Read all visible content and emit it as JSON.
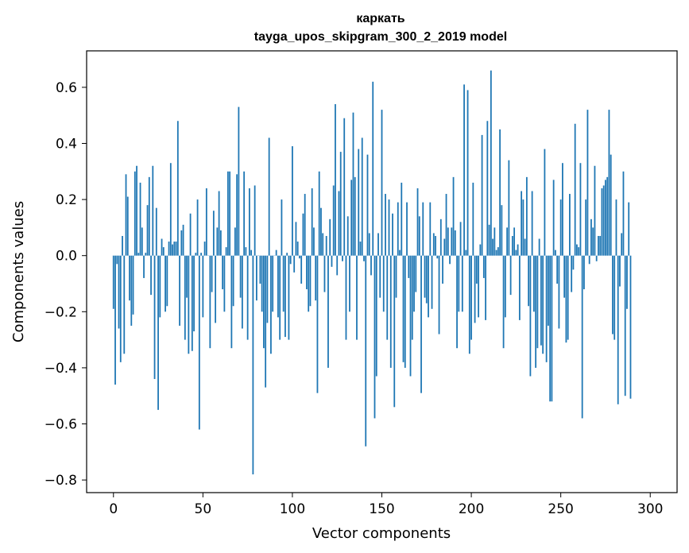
{
  "chart_data": {
    "type": "bar",
    "title": "каркать",
    "subtitle": "tayga_upos_skipgram_300_2_2019 model",
    "xlabel": "Vector components",
    "ylabel": "Components values",
    "xlim": [
      -15,
      315
    ],
    "ylim": [
      -0.845,
      0.73
    ],
    "x_ticks": [
      0,
      50,
      100,
      150,
      200,
      250,
      300
    ],
    "x_tick_labels": [
      "0",
      "50",
      "100",
      "150",
      "200",
      "250",
      "300"
    ],
    "y_ticks": [
      -0.8,
      -0.6,
      -0.4,
      -0.2,
      0.0,
      0.2,
      0.4,
      0.6
    ],
    "y_tick_labels": [
      "−0.8",
      "−0.6",
      "−0.4",
      "−0.2",
      "0.0",
      "0.2",
      "0.4",
      "0.6"
    ],
    "series_color": "#1f77b4",
    "grid": false,
    "legend": false,
    "values": [
      -0.19,
      -0.46,
      -0.03,
      -0.26,
      -0.38,
      0.07,
      -0.35,
      0.29,
      0.21,
      -0.16,
      -0.25,
      -0.21,
      0.3,
      0.32,
      0.01,
      0.26,
      0.1,
      -0.08,
      0.01,
      0.18,
      0.28,
      -0.14,
      0.32,
      -0.44,
      0.17,
      -0.55,
      -0.22,
      0.06,
      0.03,
      -0.2,
      -0.18,
      0.05,
      0.33,
      0.04,
      0.05,
      0.05,
      0.48,
      -0.25,
      0.09,
      0.11,
      -0.3,
      -0.15,
      -0.35,
      0.15,
      -0.34,
      -0.27,
      0.01,
      0.2,
      -0.62,
      0.01,
      -0.22,
      0.05,
      0.24,
      0.0,
      -0.33,
      -0.13,
      0.16,
      -0.24,
      0.1,
      0.23,
      0.09,
      -0.12,
      -0.2,
      0.03,
      0.3,
      0.3,
      -0.33,
      -0.18,
      0.1,
      0.29,
      0.53,
      -0.15,
      -0.26,
      0.3,
      0.03,
      -0.3,
      0.24,
      0.02,
      -0.78,
      0.25,
      -0.16,
      0.0,
      -0.1,
      -0.2,
      -0.33,
      -0.47,
      -0.24,
      0.42,
      -0.35,
      -0.2,
      0.0,
      0.02,
      -0.22,
      -0.3,
      0.2,
      -0.2,
      -0.29,
      0.01,
      -0.3,
      -0.03,
      0.39,
      -0.06,
      0.12,
      0.05,
      -0.01,
      -0.1,
      0.15,
      0.22,
      -0.12,
      -0.2,
      -0.18,
      0.24,
      0.1,
      -0.16,
      -0.49,
      0.3,
      0.17,
      0.08,
      -0.13,
      0.07,
      -0.4,
      0.13,
      -0.04,
      0.25,
      0.54,
      -0.07,
      0.23,
      0.37,
      -0.02,
      0.49,
      -0.3,
      0.14,
      -0.2,
      0.27,
      0.51,
      0.28,
      -0.3,
      0.38,
      0.05,
      0.42,
      -0.02,
      -0.68,
      0.36,
      0.08,
      -0.07,
      0.62,
      -0.58,
      -0.43,
      0.08,
      -0.15,
      0.52,
      -0.2,
      0.22,
      -0.3,
      0.2,
      -0.4,
      0.15,
      -0.54,
      -0.15,
      0.19,
      0.02,
      0.26,
      -0.38,
      -0.4,
      0.19,
      -0.08,
      -0.43,
      -0.3,
      -0.2,
      -0.13,
      0.24,
      0.14,
      -0.49,
      0.19,
      -0.15,
      -0.17,
      -0.22,
      0.19,
      -0.19,
      0.08,
      0.07,
      -0.01,
      -0.28,
      0.13,
      -0.1,
      0.06,
      0.22,
      0.1,
      -0.03,
      0.1,
      0.28,
      0.09,
      -0.33,
      -0.2,
      0.12,
      -0.2,
      0.61,
      0.02,
      0.59,
      -0.35,
      -0.3,
      0.26,
      -0.24,
      -0.1,
      -0.22,
      0.04,
      0.43,
      -0.08,
      -0.23,
      0.48,
      0.11,
      0.66,
      0.06,
      0.1,
      0.02,
      0.03,
      0.45,
      0.18,
      -0.33,
      -0.22,
      0.1,
      0.34,
      -0.14,
      0.07,
      0.1,
      0.02,
      0.04,
      -0.23,
      0.23,
      0.2,
      0.06,
      0.28,
      -0.18,
      -0.43,
      0.23,
      -0.2,
      -0.4,
      -0.33,
      0.06,
      -0.32,
      -0.35,
      0.38,
      -0.38,
      -0.25,
      -0.52,
      -0.52,
      0.27,
      0.02,
      -0.1,
      -0.26,
      0.2,
      0.33,
      -0.15,
      -0.31,
      -0.3,
      0.22,
      -0.13,
      -0.05,
      0.47,
      0.04,
      0.03,
      0.33,
      -0.58,
      -0.12,
      0.2,
      0.52,
      -0.03,
      0.13,
      0.1,
      0.32,
      -0.02,
      0.07,
      0.07,
      0.24,
      0.25,
      0.27,
      0.28,
      0.52,
      0.36,
      -0.28,
      -0.3,
      0.2,
      -0.53,
      -0.11,
      0.08,
      0.3,
      -0.5,
      -0.19,
      0.19,
      -0.51
    ]
  }
}
